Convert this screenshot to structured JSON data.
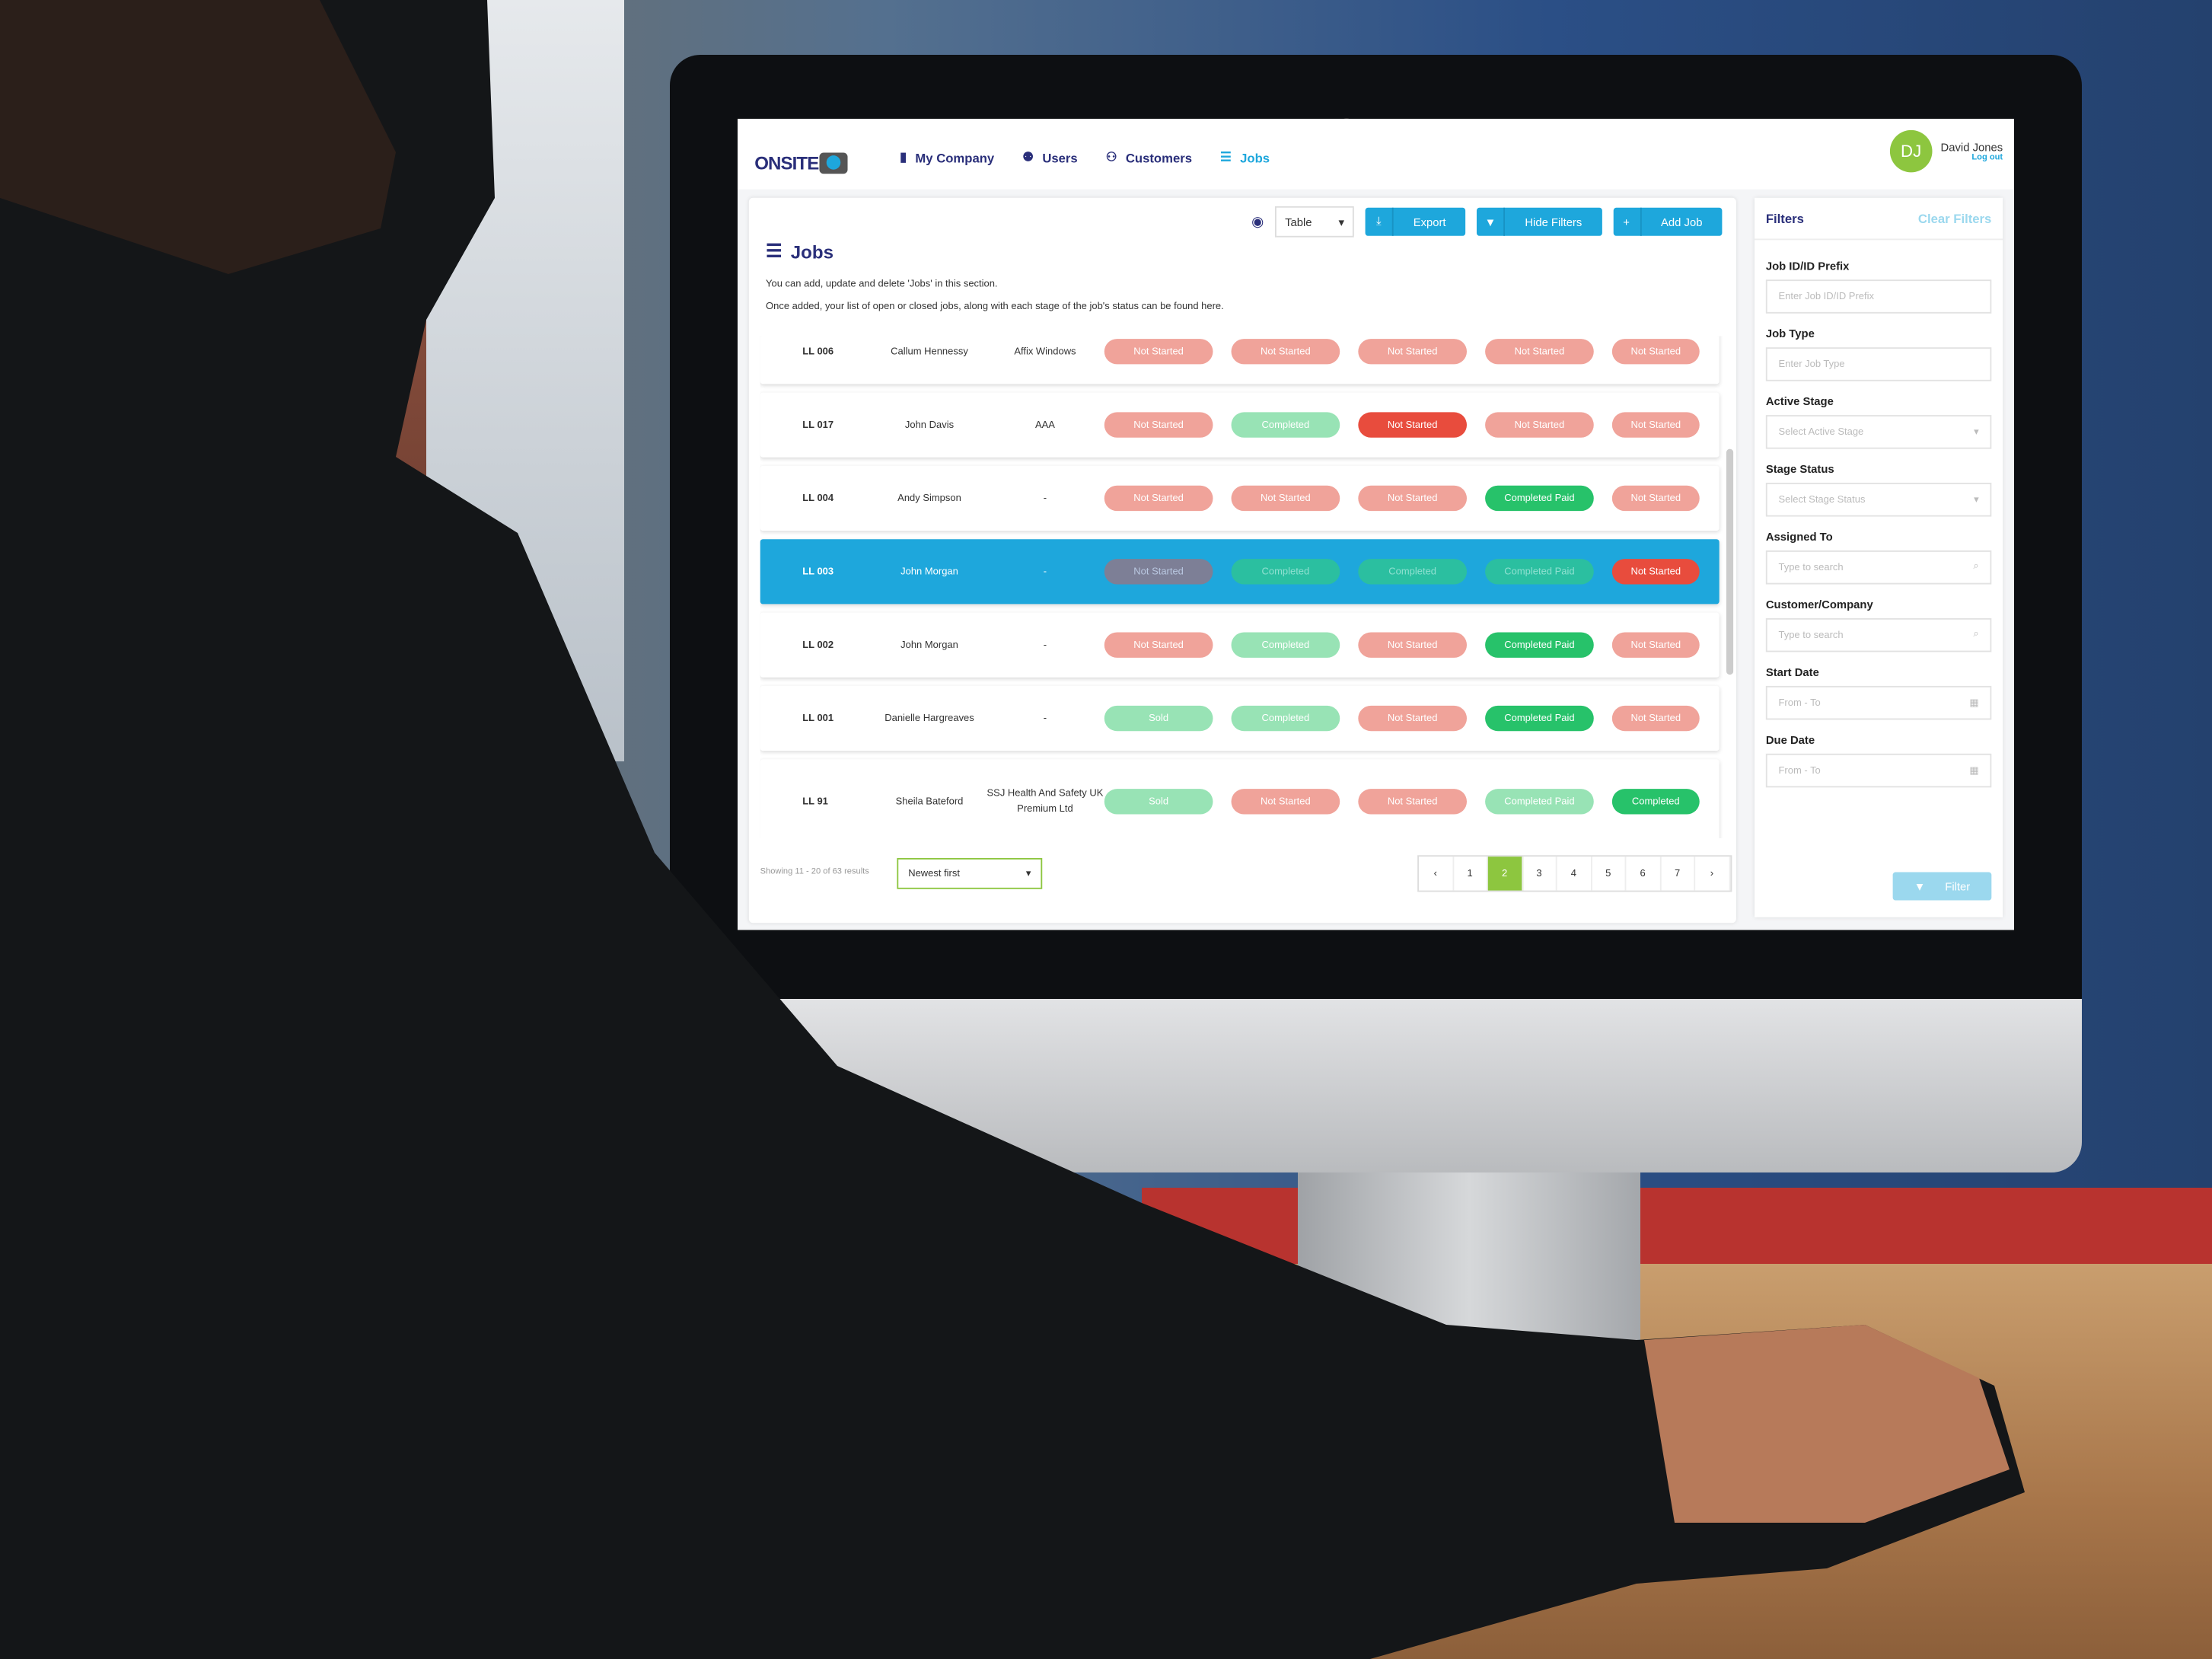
{
  "header": {
    "logo": "ONSITE",
    "nav": [
      {
        "label": "My Company",
        "icon": "building-icon"
      },
      {
        "label": "Users",
        "icon": "users-icon"
      },
      {
        "label": "Customers",
        "icon": "customers-icon"
      },
      {
        "label": "Jobs",
        "icon": "list-icon",
        "active": true
      }
    ],
    "user": {
      "initials": "DJ",
      "name": "David Jones",
      "logout": "Log out"
    }
  },
  "toolbar": {
    "view_select": "Table",
    "export": "Export",
    "hide_filters": "Hide Filters",
    "add_job": "Add Job"
  },
  "page": {
    "title": "Jobs",
    "desc1": "You can add, update and delete 'Jobs' in this section.",
    "desc2": "Once added, your list of open or closed jobs, along with each stage of the job's status can be found here."
  },
  "colors": {
    "accent": "#1ea7dc",
    "navy": "#2a2f7a",
    "green": "#8dc63f",
    "not_started_light": "#f0a39a",
    "not_started_strong": "#e84c3d",
    "completed_light": "#98e3b5",
    "completed_strong": "#27c26a"
  },
  "jobs": [
    {
      "id": "LL 006",
      "name": "Callum Hennessy",
      "company": "Affix Windows",
      "stages": [
        {
          "label": "Not Started",
          "style": "ns-light"
        },
        {
          "label": "Not Started",
          "style": "ns-light"
        },
        {
          "label": "Not Started",
          "style": "ns-light"
        },
        {
          "label": "Not Started",
          "style": "ns-light"
        },
        {
          "label": "Not Started",
          "style": "ns-light"
        }
      ]
    },
    {
      "id": "LL 017",
      "name": "John Davis",
      "company": "AAA",
      "stages": [
        {
          "label": "Not Started",
          "style": "ns-light"
        },
        {
          "label": "Completed",
          "style": "c-light"
        },
        {
          "label": "Not Started",
          "style": "ns-strong"
        },
        {
          "label": "Not Started",
          "style": "ns-light"
        },
        {
          "label": "Not Started",
          "style": "ns-light"
        }
      ]
    },
    {
      "id": "LL 004",
      "name": "Andy Simpson",
      "company": "-",
      "stages": [
        {
          "label": "Not Started",
          "style": "ns-light"
        },
        {
          "label": "Not Started",
          "style": "ns-light"
        },
        {
          "label": "Not Started",
          "style": "ns-light"
        },
        {
          "label": "Completed Paid",
          "style": "c-strong"
        },
        {
          "label": "Not Started",
          "style": "ns-light"
        }
      ]
    },
    {
      "id": "LL 003",
      "name": "John Morgan",
      "company": "-",
      "selected": true,
      "stages": [
        {
          "label": "Not Started",
          "style": "sel-gray"
        },
        {
          "label": "Completed",
          "style": "sel-teal"
        },
        {
          "label": "Completed",
          "style": "sel-teal"
        },
        {
          "label": "Completed Paid",
          "style": "sel-teal"
        },
        {
          "label": "Not Started",
          "style": "ns-strong"
        }
      ]
    },
    {
      "id": "LL 002",
      "name": "John Morgan",
      "company": "-",
      "stages": [
        {
          "label": "Not Started",
          "style": "ns-light"
        },
        {
          "label": "Completed",
          "style": "c-light"
        },
        {
          "label": "Not Started",
          "style": "ns-light"
        },
        {
          "label": "Completed Paid",
          "style": "c-strong"
        },
        {
          "label": "Not Started",
          "style": "ns-light"
        }
      ]
    },
    {
      "id": "LL 001",
      "name": "Danielle Hargreaves",
      "company": "-",
      "stages": [
        {
          "label": "Sold",
          "style": "sold"
        },
        {
          "label": "Completed",
          "style": "c-light"
        },
        {
          "label": "Not Started",
          "style": "ns-light"
        },
        {
          "label": "Completed Paid",
          "style": "c-strong"
        },
        {
          "label": "Not Started",
          "style": "ns-light"
        }
      ]
    },
    {
      "id": "LL 91",
      "name": "Sheila Bateford",
      "company": "SSJ Health And Safety UK Premium Ltd",
      "stages": [
        {
          "label": "Sold",
          "style": "sold"
        },
        {
          "label": "Not Started",
          "style": "ns-light"
        },
        {
          "label": "Not Started",
          "style": "ns-light"
        },
        {
          "label": "Completed Paid",
          "style": "c-light"
        },
        {
          "label": "Completed",
          "style": "c-strong"
        }
      ]
    }
  ],
  "footer": {
    "showing": "Showing 11 - 20 of 63 results",
    "sort": "Newest first",
    "pages": [
      "‹",
      "1",
      "2",
      "3",
      "4",
      "5",
      "6",
      "7",
      "›"
    ],
    "current_page": "2"
  },
  "filters": {
    "title": "Filters",
    "clear": "Clear Filters",
    "fields": [
      {
        "label": "Job ID/ID Prefix",
        "placeholder": "Enter Job ID/ID Prefix",
        "icon": ""
      },
      {
        "label": "Job Type",
        "placeholder": "Enter Job Type",
        "icon": ""
      },
      {
        "label": "Active Stage",
        "placeholder": "Select Active Stage",
        "icon": "▾"
      },
      {
        "label": "Stage Status",
        "placeholder": "Select Stage Status",
        "icon": "▾"
      },
      {
        "label": "Assigned To",
        "placeholder": "Type to search",
        "icon": "⌕"
      },
      {
        "label": "Customer/Company",
        "placeholder": "Type to search",
        "icon": "⌕"
      },
      {
        "label": "Start Date",
        "placeholder": "From - To",
        "icon": "▦"
      },
      {
        "label": "Due Date",
        "placeholder": "From - To",
        "icon": "▦"
      }
    ],
    "button": "Filter"
  }
}
